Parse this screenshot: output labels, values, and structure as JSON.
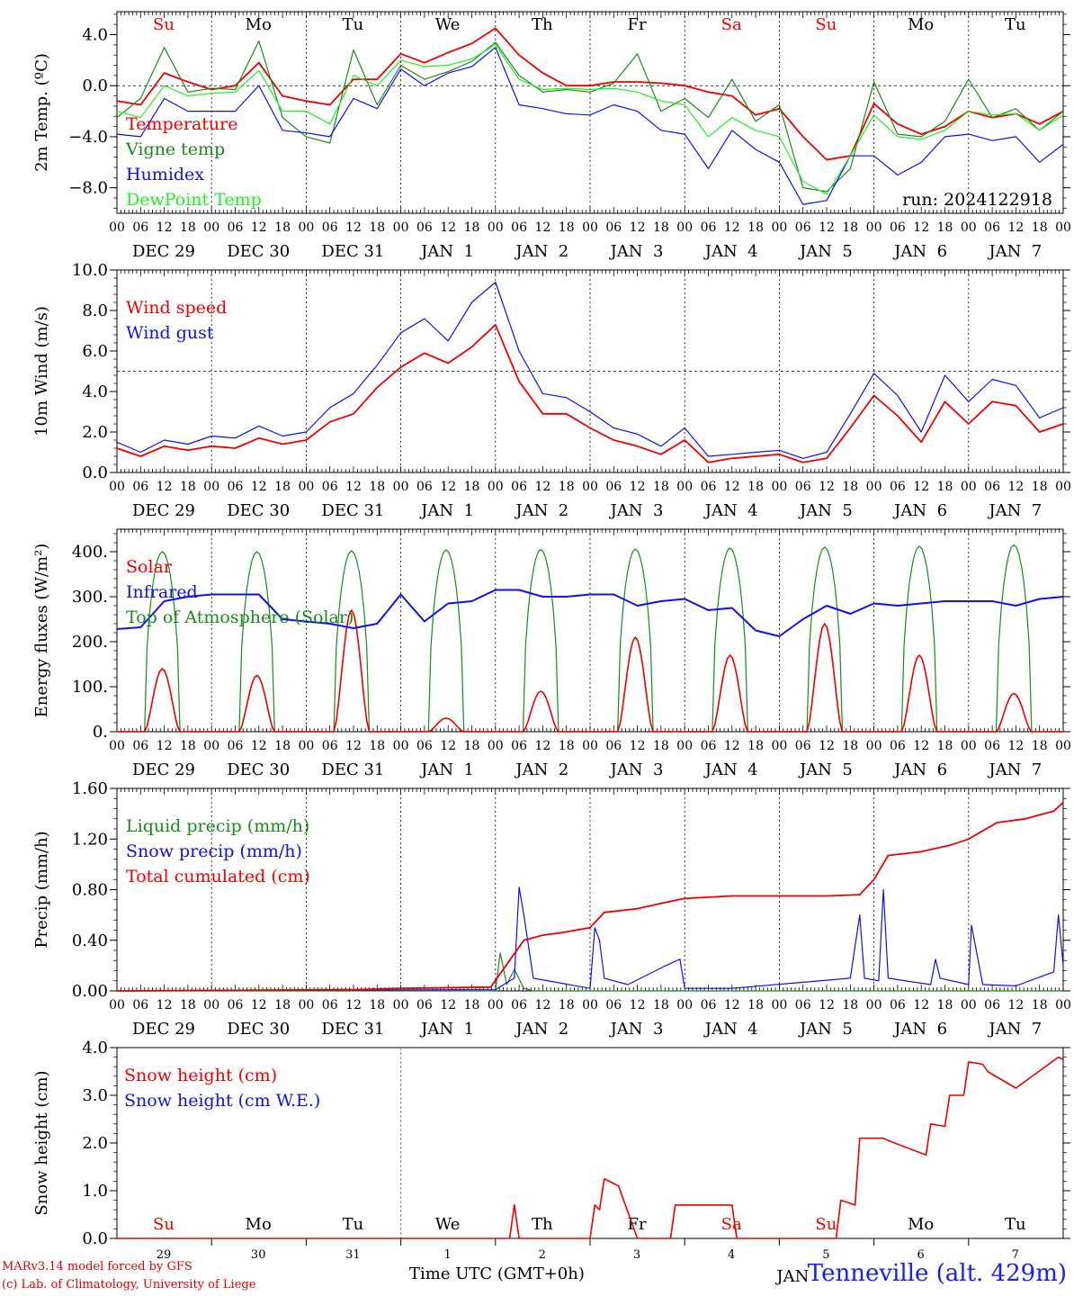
{
  "colors": {
    "red": "#ee0000",
    "dark_green": "#1a8a1a",
    "light_green": "#22ee22",
    "blue": "#1010ee",
    "axis": "#000000"
  },
  "time_axis": {
    "hour_labels": [
      "00",
      "06",
      "12",
      "18"
    ],
    "date_labels": [
      "DEC 29",
      "DEC 30",
      "DEC 31",
      "JAN  1",
      "JAN  2",
      "JAN  3",
      "JAN  4",
      "JAN  5",
      "JAN  6",
      "JAN  7"
    ],
    "weekday_labels": [
      "Su",
      "Mo",
      "Tu",
      "We",
      "Th",
      "Fr",
      "Sa",
      "Su",
      "Mo",
      "Tu"
    ],
    "weekend_days": [
      0,
      6,
      7
    ],
    "day_numbers": [
      "29",
      "30",
      "31",
      "1",
      "2",
      "3",
      "4",
      "5",
      "6",
      "7"
    ],
    "month_label": "JAN",
    "title": "Time UTC (GMT+0h)"
  },
  "credits": {
    "line1": "MARv3.14 model forced by GFS",
    "line2": "(c) Lab. of Climatology, University of Liege"
  },
  "station": "Tenneville (alt. 429m)",
  "chart_data": [
    {
      "type": "line",
      "ylabel": "2m Temp. (ºC)",
      "ylim": [
        -10,
        5.8
      ],
      "yticks": [
        4,
        0,
        -4,
        -8
      ],
      "ytick_labels": [
        "4.0",
        "0.0",
        "−4.0",
        "−8.0"
      ],
      "reference_line": 0,
      "annotation": "run: 2024122918",
      "x_days": [
        0,
        0.25,
        0.5,
        0.75,
        1,
        1.25,
        1.5,
        1.75,
        2,
        2.25,
        2.5,
        2.75,
        3,
        3.25,
        3.5,
        3.75,
        4,
        4.25,
        4.5,
        4.75,
        5,
        5.25,
        5.5,
        5.75,
        6,
        6.25,
        6.5,
        6.75,
        7,
        7.25,
        7.5,
        7.75,
        8,
        8.25,
        8.5,
        8.75,
        9,
        9.25,
        9.5,
        9.75,
        10
      ],
      "series": [
        {
          "name": "Temperature",
          "color_key": "red",
          "values": [
            -1.2,
            -1.5,
            1,
            0.3,
            -0.3,
            0,
            1.8,
            -0.8,
            -1.2,
            -1.5,
            0.5,
            0.5,
            2.5,
            1.8,
            2.6,
            3.3,
            4.5,
            2.4,
            1,
            0,
            0,
            0.3,
            0.3,
            0.2,
            0,
            -0.5,
            -0.8,
            -2.3,
            -1.8,
            -4,
            -5.8,
            -5.5,
            -1.4,
            -3,
            -3.8,
            -3.2,
            -2,
            -2.5,
            -2.2,
            -3,
            -2
          ]
        },
        {
          "name": "Vigne temp",
          "color_key": "dark_green",
          "values": [
            -2.5,
            -1,
            3,
            -0.5,
            -0.2,
            -0.3,
            3.5,
            -2.5,
            -4,
            -4.5,
            2.8,
            -1.5,
            1.6,
            0.5,
            1.1,
            1.9,
            3.4,
            0.8,
            -0.5,
            -0.3,
            -0.5,
            0.2,
            2.5,
            -2,
            -1,
            -2.5,
            0.5,
            -2.8,
            -1.5,
            -8,
            -8.3,
            -6.5,
            0.3,
            -3.8,
            -4,
            -2.8,
            0.5,
            -2.5,
            -1.8,
            -3.5,
            -2
          ]
        },
        {
          "name": "Humidex",
          "color_key": "blue",
          "values": [
            -3.8,
            -4,
            -1,
            -2,
            -2,
            -2,
            0,
            -3.5,
            -3.7,
            -4,
            -1,
            -1.8,
            1.3,
            0,
            1,
            1.5,
            3,
            -1.5,
            -1.8,
            -2.2,
            -2.3,
            -1.5,
            -2,
            -3.5,
            -3.8,
            -6.5,
            -3.5,
            -5,
            -6,
            -9.3,
            -9,
            -5.5,
            -5.5,
            -7,
            -6,
            -4,
            -3.8,
            -4.3,
            -4,
            -6,
            -4.6
          ]
        },
        {
          "name": "DewPoint Temp",
          "color_key": "light_green",
          "values": [
            -2,
            -2.5,
            0,
            -0.8,
            -0.6,
            -0.5,
            1.2,
            -2,
            -2,
            -3,
            0.8,
            0,
            2,
            1.5,
            1.6,
            2.1,
            3.2,
            0.5,
            -0.3,
            -0.2,
            -0.3,
            -0.2,
            -0.5,
            -1.2,
            -1.5,
            -4,
            -2.5,
            -3.5,
            -4,
            -7.5,
            -8.5,
            -5.5,
            -2.3,
            -4,
            -4.2,
            -3.5,
            -2,
            -2.3,
            -2.2,
            -3.5,
            -2.3
          ]
        }
      ]
    },
    {
      "type": "line",
      "ylabel": "10m Wind (m/s)",
      "ylim": [
        0,
        10
      ],
      "yticks": [
        0,
        2,
        4,
        6,
        8,
        10
      ],
      "ytick_labels": [
        "0.0",
        "2.0",
        "4.0",
        "6.0",
        "8.0",
        "10.0"
      ],
      "reference_line": 5,
      "x_days": [
        0,
        0.25,
        0.5,
        0.75,
        1,
        1.25,
        1.5,
        1.75,
        2,
        2.25,
        2.5,
        2.75,
        3,
        3.25,
        3.5,
        3.75,
        4,
        4.25,
        4.5,
        4.75,
        5,
        5.25,
        5.5,
        5.75,
        6,
        6.25,
        6.5,
        6.75,
        7,
        7.25,
        7.5,
        7.75,
        8,
        8.25,
        8.5,
        8.75,
        9,
        9.25,
        9.5,
        9.75,
        10
      ],
      "series": [
        {
          "name": "Wind speed",
          "color_key": "red",
          "values": [
            1.2,
            0.8,
            1.3,
            1.1,
            1.3,
            1.2,
            1.7,
            1.4,
            1.6,
            2.5,
            2.9,
            4.2,
            5.2,
            5.9,
            5.4,
            6.2,
            7.3,
            4.5,
            2.9,
            2.9,
            2.2,
            1.6,
            1.3,
            0.9,
            1.6,
            0.5,
            0.7,
            0.8,
            0.9,
            0.5,
            0.7,
            2.2,
            3.8,
            2.8,
            1.5,
            3.5,
            2.4,
            3.5,
            3.3,
            2,
            2.4
          ]
        },
        {
          "name": "Wind gust",
          "color_key": "blue",
          "values": [
            1.5,
            1,
            1.6,
            1.4,
            1.8,
            1.7,
            2.3,
            1.8,
            2,
            3.2,
            3.9,
            5.3,
            6.9,
            7.6,
            6.5,
            8.4,
            9.4,
            6,
            3.9,
            3.7,
            3,
            2.2,
            1.9,
            1.3,
            2.2,
            0.8,
            0.9,
            1,
            1.1,
            0.7,
            1,
            2.9,
            4.9,
            3.8,
            2,
            4.8,
            3.5,
            4.6,
            4.3,
            2.7,
            3.2
          ]
        }
      ]
    },
    {
      "type": "line",
      "ylabel": "Energy fluxes (W/m²)",
      "ylim": [
        0,
        450
      ],
      "yticks": [
        0,
        100,
        200,
        300,
        400
      ],
      "ytick_labels": [
        "0.",
        "100.",
        "200.",
        "300.",
        "400."
      ],
      "toa_peaks": [
        400,
        400,
        402,
        404,
        405,
        406,
        408,
        410,
        412,
        415
      ],
      "solar_peaks": [
        140,
        125,
        270,
        30,
        90,
        210,
        170,
        240,
        170,
        85
      ],
      "series": [
        {
          "name": "Solar",
          "color_key": "red"
        },
        {
          "name": "Infrared",
          "color_key": "blue",
          "x_days": [
            0,
            0.25,
            0.5,
            0.75,
            1,
            1.25,
            1.5,
            1.75,
            2,
            2.25,
            2.5,
            2.75,
            3,
            3.25,
            3.5,
            3.75,
            4,
            4.25,
            4.5,
            4.75,
            5,
            5.25,
            5.5,
            5.75,
            6,
            6.25,
            6.5,
            6.75,
            7,
            7.25,
            7.5,
            7.75,
            8,
            8.25,
            8.5,
            8.75,
            9,
            9.25,
            9.5,
            9.75,
            10
          ],
          "values": [
            228,
            232,
            290,
            300,
            305,
            305,
            305,
            250,
            245,
            240,
            230,
            240,
            305,
            245,
            285,
            290,
            315,
            315,
            300,
            300,
            305,
            305,
            280,
            290,
            295,
            270,
            275,
            225,
            212,
            250,
            280,
            262,
            285,
            280,
            285,
            290,
            290,
            290,
            280,
            295,
            300
          ]
        },
        {
          "name": "Top of Atmosphere (Solar)",
          "color_key": "dark_green"
        }
      ]
    },
    {
      "type": "line",
      "ylabel": "Precip (mm/h)",
      "ylim": [
        0,
        1.6
      ],
      "yticks": [
        0,
        0.4,
        0.8,
        1.2,
        1.6
      ],
      "ytick_labels": [
        "0.00",
        "0.40",
        "0.80",
        "1.20",
        "1.60"
      ],
      "series": [
        {
          "name": "Liquid precip (mm/h)",
          "color_key": "dark_green",
          "x_days": [
            0,
            4,
            4.05,
            4.12,
            4.2,
            4.3,
            4.4,
            10
          ],
          "values": [
            0,
            0,
            0.3,
            0.05,
            0.17,
            0.02,
            0,
            0
          ]
        },
        {
          "name": "Snow precip (mm/h)",
          "color_key": "blue",
          "x_days": [
            0,
            4,
            4.2,
            4.25,
            4.3,
            4.4,
            5,
            5.05,
            5.1,
            5.15,
            5.4,
            5.8,
            5.95,
            6,
            6.5,
            7.75,
            7.85,
            7.9,
            8.05,
            8.1,
            8.15,
            8.6,
            8.65,
            8.7,
            9,
            9.03,
            9.15,
            9.5,
            9.9,
            9.95,
            10
          ],
          "values": [
            0,
            0.01,
            0.1,
            0.82,
            0.6,
            0.1,
            0.02,
            0.5,
            0.4,
            0.1,
            0.05,
            0.2,
            0.25,
            0.02,
            0.02,
            0.1,
            0.6,
            0.1,
            0.08,
            0.8,
            0.1,
            0.05,
            0.25,
            0.1,
            0.05,
            0.52,
            0.05,
            0.04,
            0.15,
            0.6,
            0.2
          ]
        },
        {
          "name": "Total cumulated (cm)",
          "color_key": "red",
          "x_days": [
            0,
            2.5,
            3,
            3.95,
            4.3,
            4.5,
            4.7,
            5,
            5.15,
            5.5,
            5.8,
            6,
            6.5,
            7,
            7.5,
            7.85,
            8,
            8.15,
            8.5,
            8.8,
            9,
            9.3,
            9.6,
            9.9,
            10
          ],
          "values": [
            0,
            0.01,
            0.02,
            0.03,
            0.4,
            0.44,
            0.46,
            0.5,
            0.62,
            0.65,
            0.7,
            0.73,
            0.75,
            0.75,
            0.75,
            0.76,
            0.88,
            1.07,
            1.1,
            1.15,
            1.2,
            1.33,
            1.36,
            1.42,
            1.49
          ]
        }
      ]
    },
    {
      "type": "line",
      "ylabel": "Snow height (cm)",
      "ylim": [
        0,
        4
      ],
      "yticks": [
        0,
        1,
        2,
        3,
        4
      ],
      "ytick_labels": [
        "0.0",
        "1.0",
        "2.0",
        "3.0",
        "4.0"
      ],
      "series": [
        {
          "name": "Snow height (cm)",
          "color_key": "red",
          "x_days": [
            0,
            4.15,
            4.2,
            4.25,
            5,
            5.05,
            5.1,
            5.15,
            5.2,
            5.3,
            5.5,
            5.55,
            5.85,
            5.9,
            6.5,
            6.55,
            7.6,
            7.65,
            7.8,
            7.85,
            8.1,
            8.15,
            8.55,
            8.6,
            8.75,
            8.8,
            8.95,
            9,
            9.15,
            9.2,
            9.5,
            9.95,
            10
          ],
          "values": [
            0,
            0,
            0.7,
            0,
            0,
            0.7,
            0.6,
            1.25,
            1.2,
            1.1,
            0,
            0,
            0,
            0.7,
            0.7,
            0,
            0,
            0.8,
            0.7,
            2.1,
            2.1,
            2.05,
            1.75,
            2.4,
            2.35,
            3.0,
            3.0,
            3.7,
            3.65,
            3.5,
            3.15,
            3.8,
            3.75
          ]
        },
        {
          "name": "Snow height (cm W.E.)",
          "color_key": "blue"
        }
      ]
    }
  ]
}
